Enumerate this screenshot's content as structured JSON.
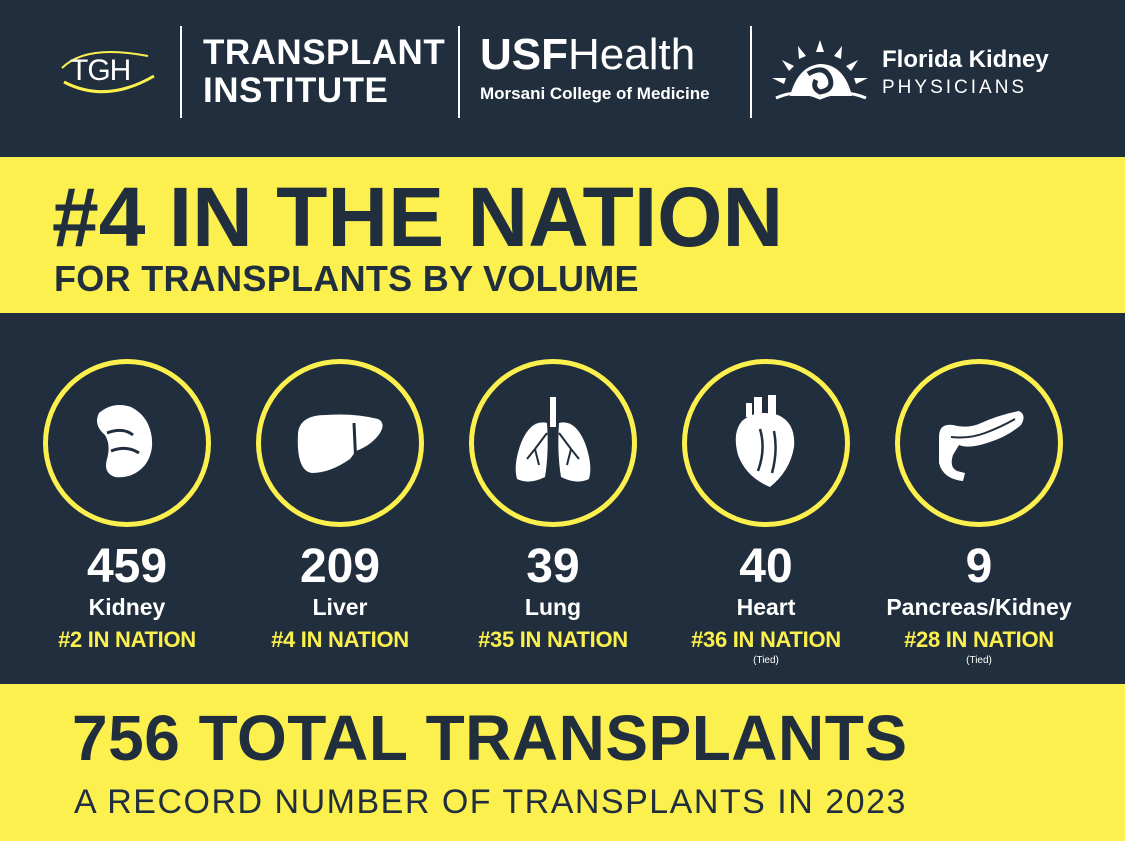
{
  "header": {
    "tgh_logo": "TGH",
    "institute_line1": "TRANSPLANT",
    "institute_line2": "INSTITUTE",
    "usf_bold": "USF",
    "usf_light": "Health",
    "usf_sub": "Morsani College of Medicine",
    "fkp_line1": "Florida Kidney",
    "fkp_line2": "PHYSICIANS"
  },
  "rank_band": {
    "headline": "#4 IN THE NATION",
    "subheadline": "FOR TRANSPLANTS BY VOLUME"
  },
  "organs": [
    {
      "count": "459",
      "label": "Kidney",
      "rank": "#2 IN NATION",
      "note": "",
      "icon": "kidney-icon"
    },
    {
      "count": "209",
      "label": "Liver",
      "rank": "#4 IN NATION",
      "note": "",
      "icon": "liver-icon"
    },
    {
      "count": "39",
      "label": "Lung",
      "rank": "#35 IN NATION",
      "note": "",
      "icon": "lung-icon"
    },
    {
      "count": "40",
      "label": "Heart",
      "rank": "#36 IN NATION",
      "note": "(Tied)",
      "icon": "heart-icon"
    },
    {
      "count": "9",
      "label": "Pancreas/Kidney",
      "rank": "#28 IN NATION",
      "note": "(Tied)",
      "icon": "pancreas-icon"
    }
  ],
  "total_band": {
    "total": "756 TOTAL TRANSPLANTS",
    "subline": "A RECORD NUMBER OF TRANSPLANTS IN 2023"
  },
  "colors": {
    "navy": "#212e3d",
    "yellow": "#fcf04f",
    "white": "#ffffff"
  }
}
